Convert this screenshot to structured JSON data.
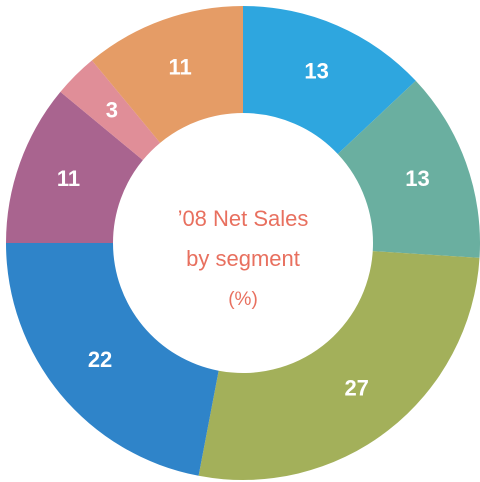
{
  "chart_data": {
    "type": "donut",
    "title": [
      "’08 Net Sales",
      "by segment"
    ],
    "subtitle": "(%)",
    "values": [
      13,
      13,
      27,
      22,
      11,
      3,
      11
    ],
    "colors": [
      "#2ea6df",
      "#6aafa0",
      "#a3b05a",
      "#2f84c9",
      "#a9648f",
      "#e08e98",
      "#e59c66"
    ]
  }
}
